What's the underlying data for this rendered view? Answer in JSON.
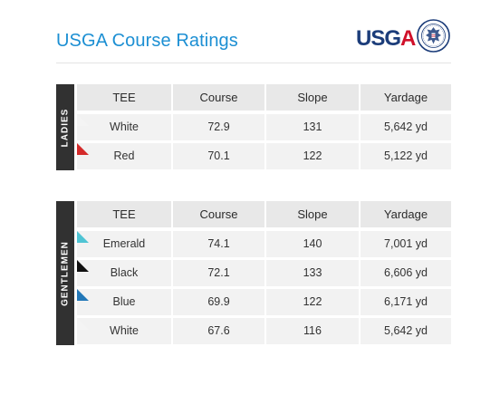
{
  "page": {
    "title": "USGA Course Ratings"
  },
  "logo": {
    "text_usg": "USG",
    "text_a": "A",
    "colors": {
      "usg": "#1c3d7a",
      "a": "#d0102a"
    },
    "seal": "usga-seal-icon"
  },
  "columns": [
    "TEE",
    "Course",
    "Slope",
    "Yardage"
  ],
  "ladies": {
    "label": "LADIES",
    "rows": [
      {
        "tee": "White",
        "color": "#f4f4f4",
        "course": "72.9",
        "slope": "131",
        "yardage": "5,642 yd"
      },
      {
        "tee": "Red",
        "color": "#d42a2a",
        "course": "70.1",
        "slope": "122",
        "yardage": "5,122 yd"
      }
    ]
  },
  "gentlemen": {
    "label": "GENTLEMEN",
    "rows": [
      {
        "tee": "Emerald",
        "color": "#4fc4d4",
        "course": "74.1",
        "slope": "140",
        "yardage": "7,001 yd"
      },
      {
        "tee": "Black",
        "color": "#111111",
        "course": "72.1",
        "slope": "133",
        "yardage": "6,606 yd"
      },
      {
        "tee": "Blue",
        "color": "#2378b8",
        "course": "69.9",
        "slope": "122",
        "yardage": "6,171 yd"
      },
      {
        "tee": "White",
        "color": "#f4f4f4",
        "course": "67.6",
        "slope": "116",
        "yardage": "5,642 yd"
      }
    ]
  }
}
